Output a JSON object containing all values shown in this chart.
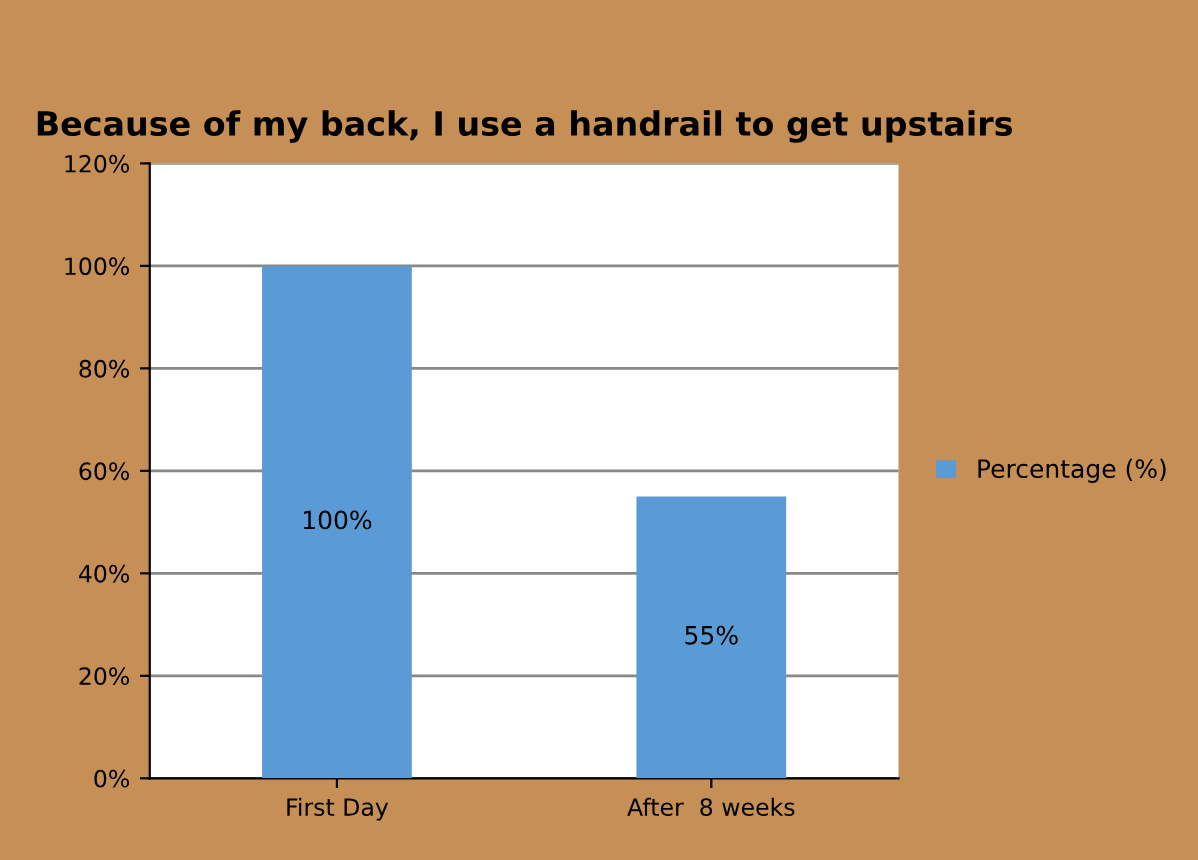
{
  "chart_data": {
    "type": "bar",
    "title": "Because of my back, I use a handrail to get upstairs",
    "categories": [
      "First Day",
      "After  8 weeks"
    ],
    "series": [
      {
        "name": "Percentage (%)",
        "color": "#5b9bd5",
        "values": [
          100,
          55
        ]
      }
    ],
    "ylim": [
      0,
      120
    ],
    "yticks": [
      {
        "value": 0,
        "label": "0%"
      },
      {
        "value": 20,
        "label": "20%"
      },
      {
        "value": 40,
        "label": "40%"
      },
      {
        "value": 60,
        "label": "60%"
      },
      {
        "value": 80,
        "label": "80%"
      },
      {
        "value": 100,
        "label": "100%"
      },
      {
        "value": 120,
        "label": "120%"
      }
    ],
    "value_labels": [
      "100%",
      "55%"
    ],
    "grid": "y",
    "legend": "right"
  }
}
